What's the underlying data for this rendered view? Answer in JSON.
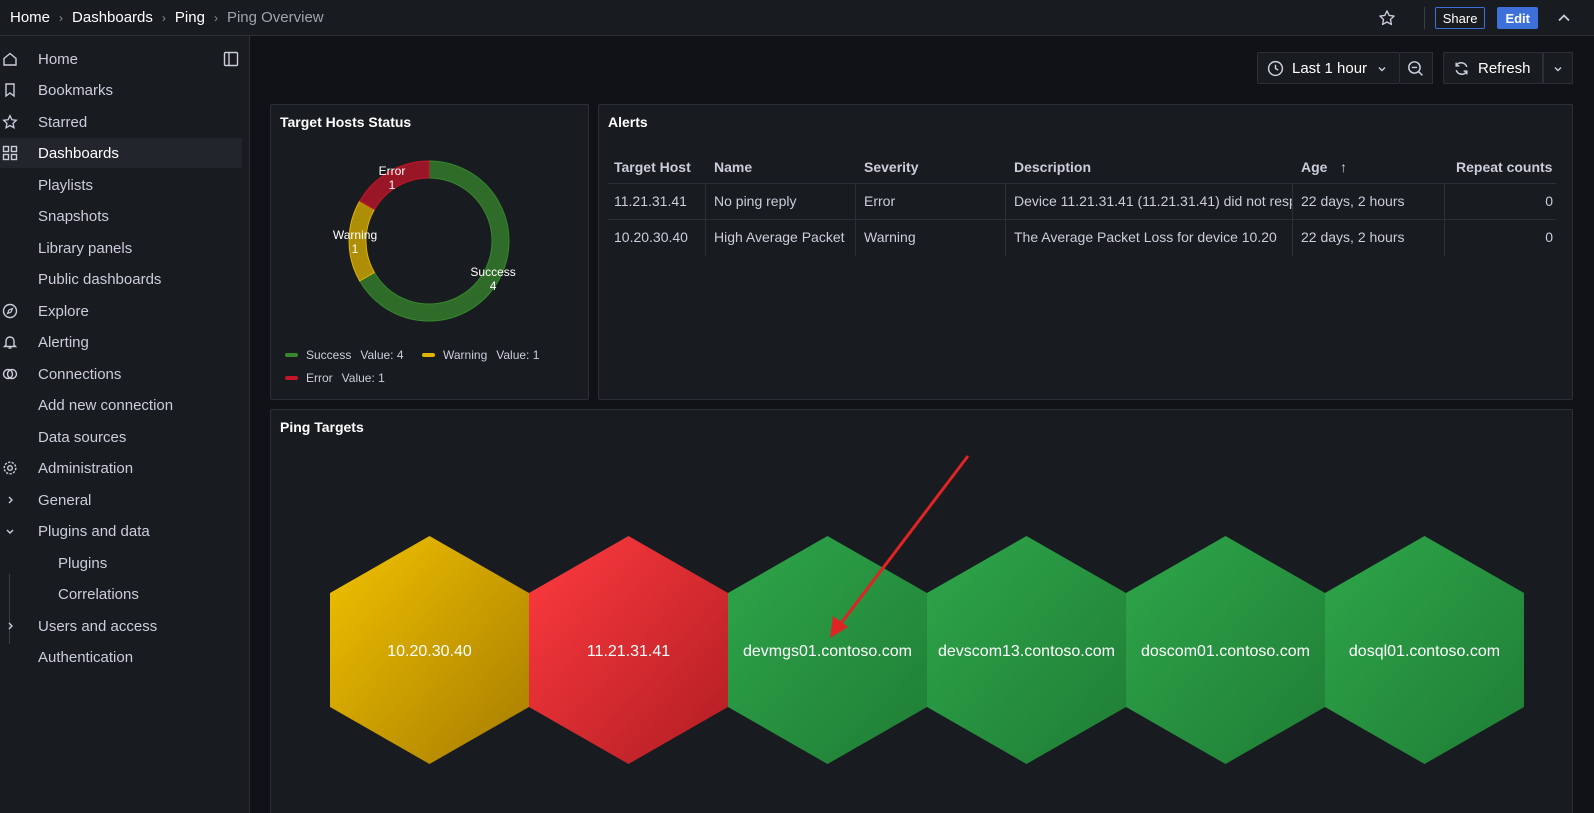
{
  "breadcrumb": {
    "items": [
      "Home",
      "Dashboards",
      "Ping",
      "Ping Overview"
    ]
  },
  "topbar": {
    "share_label": "Share",
    "edit_label": "Edit"
  },
  "sidebar": {
    "items": [
      {
        "label": "Home",
        "icon": "home-icon"
      },
      {
        "label": "Bookmarks",
        "icon": "bookmark-icon"
      },
      {
        "label": "Starred",
        "icon": "star-icon"
      },
      {
        "label": "Dashboards",
        "icon": "dashboards-icon",
        "active": true
      },
      {
        "label": "Playlists"
      },
      {
        "label": "Snapshots"
      },
      {
        "label": "Library panels"
      },
      {
        "label": "Public dashboards"
      },
      {
        "label": "Explore",
        "icon": "compass-icon"
      },
      {
        "label": "Alerting",
        "icon": "bell-icon"
      },
      {
        "label": "Connections",
        "icon": "connections-icon"
      },
      {
        "label": "Add new connection"
      },
      {
        "label": "Data sources"
      },
      {
        "label": "Administration",
        "icon": "gear-icon"
      },
      {
        "label": "General",
        "icon": "chevron-right-icon"
      },
      {
        "label": "Plugins and data",
        "icon": "chevron-down-icon"
      },
      {
        "label": "Plugins"
      },
      {
        "label": "Correlations"
      },
      {
        "label": "Users and access",
        "icon": "chevron-right-icon"
      },
      {
        "label": "Authentication"
      }
    ]
  },
  "toolbar": {
    "time_range": "Last 1 hour",
    "refresh_label": "Refresh"
  },
  "status_panel": {
    "title": "Target Hosts Status",
    "slices": [
      {
        "label": "Success",
        "value": 4,
        "value_text": "4",
        "color": "#37872d"
      },
      {
        "label": "Warning",
        "value": 1,
        "value_text": "1",
        "color": "#e0b400"
      },
      {
        "label": "Error",
        "value": 1,
        "value_text": "1",
        "color": "#c4162a"
      }
    ],
    "legend": [
      {
        "name": "Success",
        "value_text": "Value: 4"
      },
      {
        "name": "Warning",
        "value_text": "Value: 1"
      },
      {
        "name": "Error",
        "value_text": "Value: 1"
      }
    ]
  },
  "alerts_panel": {
    "title": "Alerts",
    "columns": [
      "Target Host",
      "Name",
      "Severity",
      "Description",
      "Age",
      "Repeat counts"
    ],
    "sort_indicator": "↑",
    "rows": [
      [
        "11.21.31.41",
        "No ping reply",
        "Error",
        "Device 11.21.31.41 (11.21.31.41) did not resp",
        "22 days, 2 hours",
        "0"
      ],
      [
        "10.20.30.40",
        "High Average Packet",
        "Warning",
        "The Average Packet Loss for device 10.20",
        "22 days, 2 hours",
        "0"
      ]
    ]
  },
  "targets_panel": {
    "title": "Ping Targets",
    "hosts": [
      {
        "label": "10.20.30.40",
        "status": "warning"
      },
      {
        "label": "11.21.31.41",
        "status": "error"
      },
      {
        "label": "devmgs01.contoso.com",
        "status": "ok"
      },
      {
        "label": "devscom13.contoso.com",
        "status": "ok"
      },
      {
        "label": "doscom01.contoso.com",
        "status": "ok"
      },
      {
        "label": "dosql01.contoso.com",
        "status": "ok"
      }
    ]
  },
  "colors": {
    "accent": "#3d71d9",
    "ok": "#2a9c44",
    "warning": "#e0b400",
    "error": "#f2343c",
    "annotation_arrow": "#e02424"
  }
}
